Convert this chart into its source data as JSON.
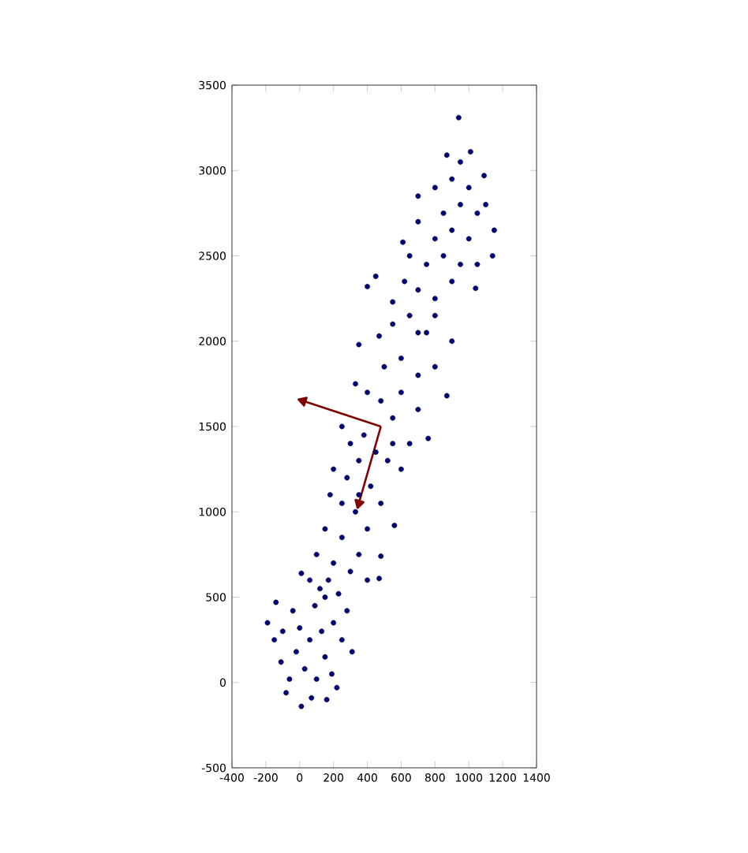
{
  "chart_data": {
    "type": "scatter",
    "xlim": [
      -400,
      1400
    ],
    "ylim": [
      -500,
      3500
    ],
    "xticks": [
      -400,
      -200,
      0,
      200,
      400,
      600,
      800,
      1000,
      1200,
      1400
    ],
    "yticks": [
      -500,
      0,
      500,
      1000,
      1500,
      2000,
      2500,
      3000,
      3500
    ],
    "series": [
      {
        "marker": "circle",
        "color": "#00007f",
        "x": [
          10,
          -80,
          70,
          160,
          220,
          -190,
          -140,
          -150,
          -110,
          -60,
          -20,
          0,
          -40,
          30,
          60,
          100,
          90,
          130,
          150,
          190,
          200,
          250,
          310,
          280,
          230,
          170,
          120,
          60,
          10,
          100,
          150,
          200,
          250,
          300,
          350,
          400,
          470,
          480,
          330,
          250,
          180,
          200,
          280,
          350,
          420,
          480,
          560,
          380,
          300,
          250,
          450,
          520,
          600,
          650,
          550,
          480,
          400,
          330,
          760,
          870,
          600,
          700,
          500,
          600,
          700,
          800,
          350,
          470,
          900,
          550,
          650,
          750,
          550,
          450,
          400,
          620,
          700,
          800,
          1040,
          900,
          750,
          650,
          850,
          950,
          1140,
          610,
          800,
          900,
          1000,
          700,
          850,
          950,
          1050,
          700,
          800,
          900,
          1000,
          1100,
          1090,
          870,
          950,
          1010,
          940,
          1150,
          1050,
          800,
          550,
          350,
          150,
          -100,
          400,
          700
        ],
        "values": [
          -140,
          -60,
          -90,
          -100,
          -30,
          350,
          470,
          250,
          120,
          20,
          180,
          320,
          420,
          80,
          250,
          20,
          450,
          300,
          150,
          50,
          350,
          250,
          180,
          420,
          520,
          600,
          550,
          600,
          640,
          750,
          900,
          700,
          850,
          650,
          750,
          900,
          610,
          740,
          1000,
          1050,
          1100,
          1250,
          1200,
          1300,
          1150,
          1050,
          920,
          1450,
          1400,
          1500,
          1350,
          1300,
          1250,
          1400,
          1550,
          1650,
          1700,
          1750,
          1430,
          1680,
          1700,
          1600,
          1850,
          1900,
          1800,
          1850,
          1980,
          2030,
          2000,
          2100,
          2150,
          2050,
          2230,
          2380,
          2320,
          2350,
          2300,
          2250,
          2310,
          2350,
          2450,
          2500,
          2500,
          2450,
          2500,
          2580,
          2600,
          2650,
          2600,
          2700,
          2750,
          2800,
          2750,
          2850,
          2900,
          2950,
          2900,
          2800,
          2970,
          3090,
          3050,
          3110,
          3310,
          2650,
          2450,
          2150,
          1400,
          1100,
          500,
          300,
          600,
          2050
        ]
      },
      {
        "type": "line",
        "marker": "triangle",
        "color": "#800000",
        "x": [
          480,
          20
        ],
        "values": [
          1500,
          1650
        ]
      },
      {
        "type": "line",
        "marker": "triangle",
        "color": "#800000",
        "x": [
          480,
          350
        ],
        "values": [
          1500,
          1050
        ]
      }
    ]
  }
}
